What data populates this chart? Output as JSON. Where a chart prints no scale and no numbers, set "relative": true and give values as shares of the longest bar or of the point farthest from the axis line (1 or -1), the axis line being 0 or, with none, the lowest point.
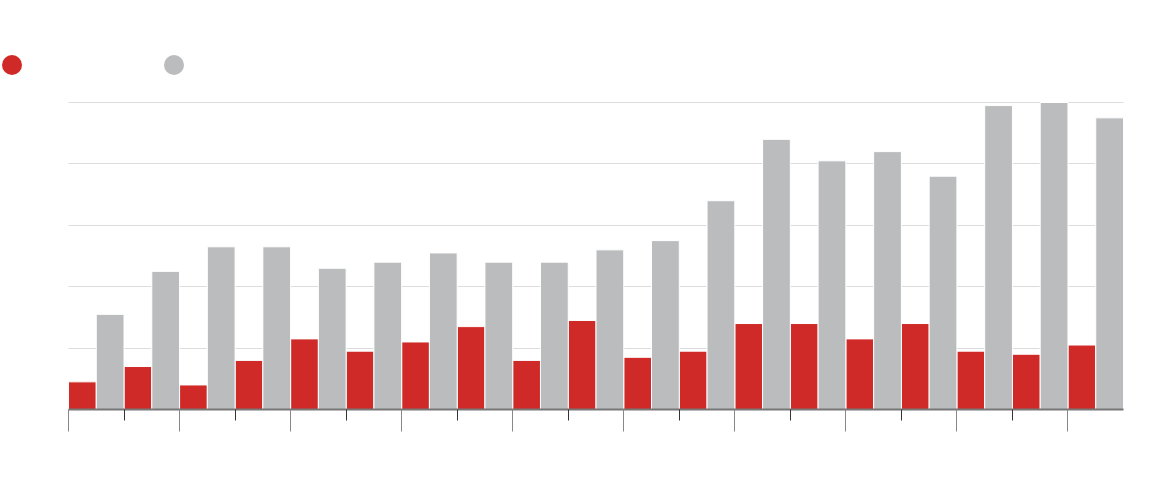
{
  "chart_data": {
    "type": "bar",
    "relative": true,
    "categories": [
      null,
      null,
      null,
      null,
      null,
      null,
      null,
      null,
      null,
      null,
      null,
      null,
      null,
      null,
      null,
      null,
      null,
      null,
      null
    ],
    "series": [
      {
        "color": "#cf2a27",
        "values": [
          0.09,
          0.14,
          0.08,
          0.16,
          0.23,
          0.19,
          0.22,
          0.27,
          0.16,
          0.29,
          0.17,
          0.19,
          0.28,
          0.28,
          0.23,
          0.28,
          0.19,
          0.18,
          0.21
        ]
      },
      {
        "color": "#bbbcbe",
        "values": [
          0.31,
          0.45,
          0.53,
          0.53,
          0.46,
          0.48,
          0.51,
          0.48,
          0.48,
          0.52,
          0.55,
          0.68,
          0.88,
          0.81,
          0.84,
          0.76,
          0.99,
          1,
          0.95
        ]
      }
    ],
    "grid": "y"
  }
}
